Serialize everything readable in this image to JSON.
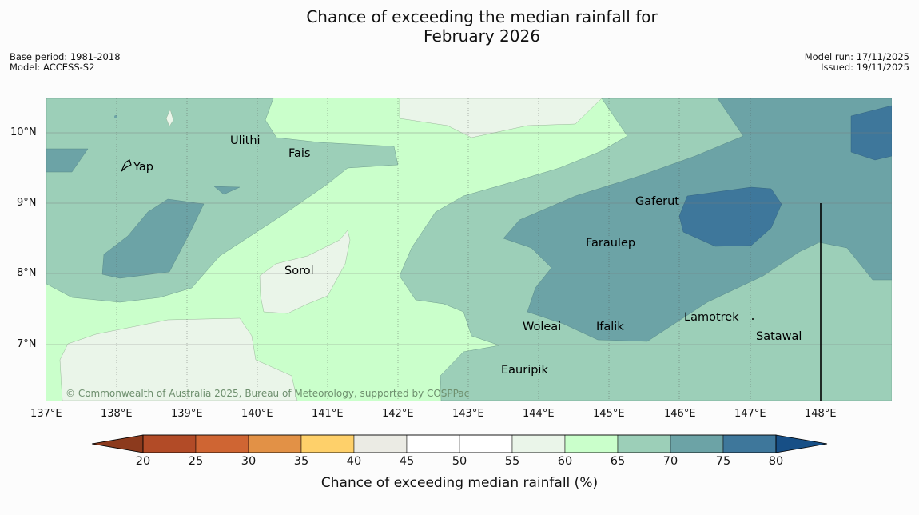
{
  "title": {
    "line1": "Chance of exceeding the median rainfall for",
    "line2": "February 2026"
  },
  "left_info": {
    "base_period": "Base period: 1981-2018",
    "model": "Model: ACCESS-S2"
  },
  "right_info": {
    "model_run": "Model run: 17/11/2025",
    "issued": "Issued: 19/11/2025"
  },
  "copyright": "© Commonwealth of Australia 2025, Bureau of Meteorology, supported by COSPPac",
  "lat_labels": [
    "10°N",
    "9°N",
    "8°N",
    "7°N"
  ],
  "lon_labels": [
    "137°E",
    "138°E",
    "139°E",
    "140°E",
    "141°E",
    "142°E",
    "143°E",
    "144°E",
    "145°E",
    "146°E",
    "147°E",
    "148°E"
  ],
  "places": [
    {
      "name": "Yap"
    },
    {
      "name": "Ulithi"
    },
    {
      "name": "Fais"
    },
    {
      "name": "Sorol"
    },
    {
      "name": "Gaferut"
    },
    {
      "name": "Faraulep"
    },
    {
      "name": "Woleai"
    },
    {
      "name": "Ifalik"
    },
    {
      "name": "Lamotrek"
    },
    {
      "name": "Satawal"
    },
    {
      "name": "Eauripik"
    }
  ],
  "colorbar": {
    "label": "Chance of exceeding median rainfall (%)",
    "ticks": [
      "20",
      "25",
      "30",
      "35",
      "40",
      "45",
      "50",
      "55",
      "60",
      "65",
      "70",
      "75",
      "80"
    ],
    "colors": {
      "under": "#8c3a1d",
      "bins": [
        "#b24b27",
        "#cf6533",
        "#e29146",
        "#fed06a",
        "#ebebe4",
        "#ffffff",
        "#ffffff",
        "#eaf5e9",
        "#caffcb",
        "#9ccfb8",
        "#6ca3a6",
        "#3e779b"
      ],
      "over": "#174f86"
    }
  }
}
